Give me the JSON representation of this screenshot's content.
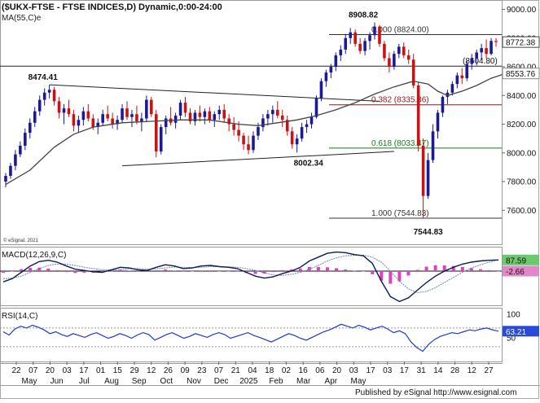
{
  "header": {
    "title": "($UKX-FTSE - FTSE INDICES,D) Dynamic,0:00-24:00",
    "ma_label": "MA(55,C)e",
    "copyright": "© eSignal, 2021",
    "footer": "Published by eSignal http://www.esignal.com"
  },
  "chart_data": [
    {
      "type": "candlestick",
      "panel": "price",
      "y_ticks": [
        "9000.00",
        "8800.00",
        "8600.00",
        "8400.00",
        "8200.00",
        "8000.00",
        "7800.00",
        "7600.00"
      ],
      "ylim": [
        7460,
        9020
      ],
      "last_price": "8772.38",
      "ma_value": "8553.76",
      "ohlc": [
        [
          7800,
          7860,
          7760,
          7840
        ],
        [
          7840,
          7930,
          7820,
          7910
        ],
        [
          7910,
          8020,
          7880,
          7990
        ],
        [
          7990,
          8080,
          7970,
          8050
        ],
        [
          8050,
          8170,
          8020,
          8140
        ],
        [
          8140,
          8240,
          8100,
          8210
        ],
        [
          8210,
          8320,
          8180,
          8290
        ],
        [
          8290,
          8400,
          8260,
          8370
        ],
        [
          8370,
          8450,
          8330,
          8420
        ],
        [
          8420,
          8474.41,
          8380,
          8440
        ],
        [
          8440,
          8460,
          8330,
          8360
        ],
        [
          8360,
          8390,
          8240,
          8280
        ],
        [
          8280,
          8340,
          8200,
          8310
        ],
        [
          8310,
          8370,
          8250,
          8270
        ],
        [
          8270,
          8300,
          8150,
          8190
        ],
        [
          8190,
          8260,
          8140,
          8230
        ],
        [
          8230,
          8320,
          8190,
          8290
        ],
        [
          8290,
          8340,
          8220,
          8240
        ],
        [
          8240,
          8270,
          8160,
          8180
        ],
        [
          8180,
          8240,
          8130,
          8210
        ],
        [
          8210,
          8300,
          8190,
          8270
        ],
        [
          8270,
          8330,
          8220,
          8240
        ],
        [
          8240,
          8280,
          8170,
          8200
        ],
        [
          8200,
          8260,
          8160,
          8230
        ],
        [
          8230,
          8340,
          8210,
          8310
        ],
        [
          8310,
          8360,
          8230,
          8250
        ],
        [
          8250,
          8300,
          8180,
          8270
        ],
        [
          8270,
          8330,
          8200,
          8220
        ],
        [
          8220,
          8280,
          8150,
          8240
        ],
        [
          8240,
          8400,
          8220,
          8370
        ],
        [
          8370,
          8390,
          8250,
          8270
        ],
        [
          8270,
          8300,
          7970,
          8010
        ],
        [
          8010,
          8200,
          7990,
          8180
        ],
        [
          8180,
          8260,
          8130,
          8240
        ],
        [
          8240,
          8320,
          8190,
          8210
        ],
        [
          8210,
          8280,
          8170,
          8260
        ],
        [
          8260,
          8370,
          8230,
          8350
        ],
        [
          8350,
          8390,
          8250,
          8280
        ],
        [
          8280,
          8310,
          8200,
          8220
        ],
        [
          8220,
          8300,
          8190,
          8280
        ],
        [
          8280,
          8330,
          8220,
          8250
        ],
        [
          8250,
          8310,
          8200,
          8290
        ],
        [
          8290,
          8320,
          8210,
          8230
        ],
        [
          8230,
          8290,
          8180,
          8270
        ],
        [
          8270,
          8330,
          8230,
          8300
        ],
        [
          8300,
          8340,
          8210,
          8240
        ],
        [
          8240,
          8270,
          8150,
          8200
        ],
        [
          8200,
          8250,
          8120,
          8160
        ],
        [
          8160,
          8220,
          8080,
          8120
        ],
        [
          8120,
          8140,
          8020,
          8060
        ],
        [
          8060,
          8120,
          7990,
          8020
        ],
        [
          8020,
          8150,
          8000,
          8120
        ],
        [
          8120,
          8210,
          8090,
          8180
        ],
        [
          8180,
          8270,
          8150,
          8240
        ],
        [
          8240,
          8300,
          8190,
          8270
        ],
        [
          8270,
          8330,
          8210,
          8300
        ],
        [
          8300,
          8360,
          8240,
          8260
        ],
        [
          8260,
          8300,
          8180,
          8230
        ],
        [
          8230,
          8260,
          8120,
          8150
        ],
        [
          8150,
          8180,
          8030,
          8060
        ],
        [
          8060,
          8130,
          8002.34,
          8100
        ],
        [
          8100,
          8210,
          8080,
          8180
        ],
        [
          8180,
          8230,
          8140,
          8200
        ],
        [
          8200,
          8280,
          8170,
          8250
        ],
        [
          8250,
          8400,
          8240,
          8380
        ],
        [
          8380,
          8520,
          8360,
          8500
        ],
        [
          8500,
          8580,
          8460,
          8560
        ],
        [
          8560,
          8620,
          8520,
          8600
        ],
        [
          8600,
          8700,
          8570,
          8680
        ],
        [
          8680,
          8750,
          8640,
          8720
        ],
        [
          8720,
          8830,
          8690,
          8800
        ],
        [
          8800,
          8870,
          8760,
          8840
        ],
        [
          8840,
          8860,
          8740,
          8760
        ],
        [
          8760,
          8800,
          8690,
          8710
        ],
        [
          8710,
          8800,
          8680,
          8780
        ],
        [
          8780,
          8840,
          8720,
          8820
        ],
        [
          8820,
          8908.82,
          8790,
          8880
        ],
        [
          8880,
          8890,
          8740,
          8760
        ],
        [
          8760,
          8780,
          8640,
          8660
        ],
        [
          8660,
          8700,
          8560,
          8600
        ],
        [
          8600,
          8710,
          8580,
          8690
        ],
        [
          8690,
          8760,
          8660,
          8740
        ],
        [
          8740,
          8770,
          8660,
          8680
        ],
        [
          8680,
          8720,
          8620,
          8650
        ],
        [
          8650,
          8690,
          8450,
          8470
        ],
        [
          8470,
          8490,
          8010,
          8050
        ],
        [
          8050,
          8100,
          7544.83,
          7700
        ],
        [
          7700,
          8000,
          7680,
          7950
        ],
        [
          7950,
          8200,
          7930,
          8150
        ],
        [
          8150,
          8300,
          8100,
          8280
        ],
        [
          8280,
          8400,
          8250,
          8390
        ],
        [
          8390,
          8440,
          8340,
          8420
        ],
        [
          8420,
          8500,
          8400,
          8480
        ],
        [
          8480,
          8560,
          8450,
          8540
        ],
        [
          8540,
          8590,
          8480,
          8520
        ],
        [
          8520,
          8640,
          8500,
          8620
        ],
        [
          8620,
          8690,
          8580,
          8660
        ],
        [
          8660,
          8720,
          8610,
          8700
        ],
        [
          8700,
          8760,
          8650,
          8730
        ],
        [
          8730,
          8790,
          8660,
          8690
        ],
        [
          8690,
          8800,
          8680,
          8780
        ],
        [
          8780,
          8800,
          8740,
          8772.38
        ]
      ],
      "ma55": [
        [
          0,
          7780
        ],
        [
          5,
          7880
        ],
        [
          10,
          8040
        ],
        [
          14,
          8130
        ],
        [
          18,
          8180
        ],
        [
          24,
          8210
        ],
        [
          30,
          8220
        ],
        [
          36,
          8230
        ],
        [
          42,
          8230
        ],
        [
          48,
          8200
        ],
        [
          52,
          8190
        ],
        [
          56,
          8210
        ],
        [
          60,
          8230
        ],
        [
          64,
          8260
        ],
        [
          68,
          8300
        ],
        [
          72,
          8350
        ],
        [
          76,
          8410
        ],
        [
          80,
          8460
        ],
        [
          84,
          8500
        ],
        [
          87,
          8480
        ],
        [
          89,
          8430
        ],
        [
          91,
          8400
        ],
        [
          94,
          8430
        ],
        [
          97,
          8470
        ],
        [
          100,
          8520
        ],
        [
          103,
          8553.76
        ]
      ],
      "trendlines": [
        {
          "from": [
            9,
            8474.41
          ],
          "to": [
            77,
            8360
          ]
        },
        {
          "from": [
            24,
            7910
          ],
          "to": [
            80,
            8010
          ]
        }
      ],
      "fib_levels": [
        {
          "label": "0.000 (8824.00)",
          "value": 8824.0,
          "color": "#333333"
        },
        {
          "label": "0.382 (8335.36)",
          "value": 8335.36,
          "color": "#8a1a1a"
        },
        {
          "label": "0.618 (8033.47)",
          "value": 8033.47,
          "color": "#1a7a1a"
        },
        {
          "label": "1.000 (7544.83)",
          "value": 7544.83,
          "color": "#333333"
        }
      ],
      "horizontal_levels": [
        {
          "label": "(8604.80)",
          "value": 8604.8
        }
      ],
      "annotations": [
        {
          "text": "8474.41",
          "bar": 9,
          "value": 8474.41
        },
        {
          "text": "8908.82",
          "bar": 76,
          "value": 8908.82
        },
        {
          "text": "8002.34",
          "bar": 60,
          "value": 8002.34
        },
        {
          "text": "7544.83",
          "bar": 86,
          "value": 7544.83
        }
      ]
    },
    {
      "type": "line",
      "panel": "macd",
      "label": "MACD(12,26,9,C)",
      "macd_value": "87.59",
      "hist_value": "-2.66",
      "y_ticks": [],
      "macd_line": [
        -85,
        -60,
        -10,
        40,
        75,
        85,
        70,
        40,
        15,
        5,
        -5,
        -10,
        10,
        30,
        25,
        10,
        5,
        30,
        50,
        40,
        20,
        25,
        40,
        45,
        35,
        30,
        20,
        -10,
        -40,
        -55,
        -45,
        -20,
        0,
        30,
        80,
        110,
        140,
        150,
        145,
        130,
        120,
        60,
        -80,
        -200,
        -240,
        -210,
        -150,
        -90,
        -40,
        0,
        30,
        55,
        70,
        80,
        85,
        87.59
      ],
      "signal_line": [
        -60,
        -55,
        -40,
        -10,
        20,
        45,
        55,
        55,
        45,
        30,
        20,
        10,
        8,
        12,
        18,
        20,
        15,
        18,
        25,
        32,
        30,
        28,
        30,
        35,
        36,
        34,
        30,
        20,
        5,
        -15,
        -30,
        -35,
        -25,
        -10,
        15,
        45,
        80,
        105,
        120,
        125,
        125,
        110,
        70,
        0,
        -80,
        -140,
        -170,
        -160,
        -130,
        -90,
        -50,
        -10,
        25,
        50,
        70,
        90
      ]
    },
    {
      "type": "line",
      "panel": "rsi",
      "label": "RSI(14,C)",
      "value": "63.21",
      "y_ticks": [
        "100",
        "50"
      ],
      "ylim": [
        0,
        110
      ],
      "values": [
        62,
        55,
        68,
        74,
        70,
        76,
        72,
        66,
        58,
        62,
        56,
        52,
        58,
        54,
        50,
        56,
        60,
        54,
        48,
        52,
        58,
        54,
        48,
        55,
        60,
        56,
        44,
        50,
        56,
        60,
        54,
        48,
        52,
        58,
        54,
        50,
        56,
        60,
        56,
        48,
        52,
        56,
        60,
        54,
        50,
        45,
        40,
        46,
        52,
        58,
        54,
        48,
        44,
        50,
        56,
        62,
        66,
        72,
        78,
        74,
        70,
        76,
        72,
        66,
        70,
        74,
        68,
        60,
        64,
        58,
        40,
        28,
        20,
        35,
        45,
        52,
        56,
        60,
        58,
        62,
        66,
        64,
        68,
        70,
        66,
        63.21
      ]
    }
  ],
  "x_axis": {
    "day_ticks": [
      "22",
      "07",
      "20",
      "03",
      "17",
      "01",
      "15",
      "29",
      "12",
      "26",
      "09",
      "23",
      "07",
      "21",
      "04",
      "18",
      "02",
      "16",
      "06",
      "20",
      "03",
      "17",
      "03",
      "17",
      "31",
      "14",
      "28",
      "12",
      "27"
    ],
    "month_ticks": [
      "May",
      "Jun",
      "Jul",
      "Aug",
      "Sep",
      "Oct",
      "Nov",
      "Dec",
      "2025",
      "Feb",
      "Mar",
      "Apr",
      "May"
    ]
  },
  "colors": {
    "bull": "#1a1a99",
    "bear": "#cc1111",
    "ma": "#444444",
    "macd_line": "#0a1a5a",
    "signal_line": "#6688bb",
    "histogram": "#e040c0",
    "rsi": "#1a3acc",
    "macd_badge": "#6cc86c",
    "hist_badge": "#e088c8",
    "rsi_badge": "#2a4ad8"
  }
}
